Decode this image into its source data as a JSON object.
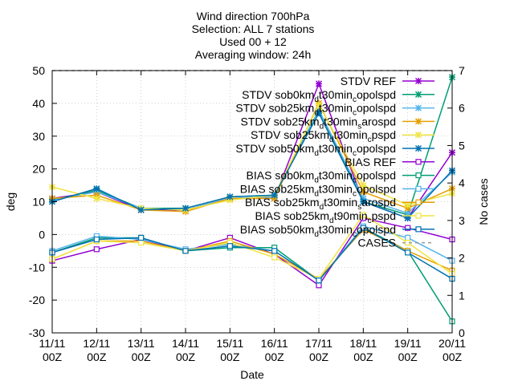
{
  "chart_data": {
    "type": "line",
    "title": [
      "Wind direction 700hPa",
      "Selection: ALL      7 stations",
      "Used 00 + 12",
      "Averaging window: 24h"
    ],
    "xlabel": "Date",
    "ylabel": "deg",
    "y2label": "No cases",
    "categories": [
      [
        "11/11",
        "00Z"
      ],
      [
        "12/11",
        "00Z"
      ],
      [
        "13/11",
        "00Z"
      ],
      [
        "14/11",
        "00Z"
      ],
      [
        "15/11",
        "00Z"
      ],
      [
        "16/11",
        "00Z"
      ],
      [
        "17/11",
        "00Z"
      ],
      [
        "18/11",
        "00Z"
      ],
      [
        "19/11",
        "00Z"
      ],
      [
        "20/11",
        "00Z"
      ]
    ],
    "ylim": [
      -30,
      50
    ],
    "yticks": [
      -30,
      -20,
      -10,
      0,
      10,
      20,
      30,
      40,
      50
    ],
    "y2lim": [
      0,
      7
    ],
    "y2ticks": [
      0,
      1,
      2,
      3,
      4,
      5,
      6,
      7
    ],
    "grid": true,
    "legend_position": "top-right",
    "series": [
      {
        "name": "STDV REF",
        "label_parts": [
          [
            "STDV REF",
            ""
          ]
        ],
        "color": "#9400d3",
        "marker": "x",
        "values": [
          11,
          13,
          7.5,
          7.5,
          11,
          11,
          46,
          10,
          5,
          25
        ]
      },
      {
        "name": "STDV sob0km_d t30min_c opolspd",
        "label_parts": [
          [
            "STDV sob0km",
            ""
          ],
          [
            "d",
            "sub"
          ],
          [
            "t30min",
            ""
          ],
          [
            "c",
            "sub"
          ],
          [
            "opolspd",
            ""
          ]
        ],
        "color": "#009e73",
        "marker": "x",
        "values": [
          10.5,
          13.5,
          8,
          8,
          11.5,
          12,
          38,
          10,
          6,
          48
        ]
      },
      {
        "name": "STDV sob25km_d t30min_c opolspd",
        "label_parts": [
          [
            "STDV sob25km",
            ""
          ],
          [
            "d",
            "sub"
          ],
          [
            "t30min",
            ""
          ],
          [
            "c",
            "sub"
          ],
          [
            "opolspd",
            ""
          ]
        ],
        "color": "#56b4e9",
        "marker": "x",
        "values": [
          10.5,
          13,
          8,
          7.5,
          11,
          11.5,
          38,
          11,
          6.5,
          19
        ]
      },
      {
        "name": "STDV sob25km_d t30min_s arospd",
        "label_parts": [
          [
            "STDV sob25km",
            ""
          ],
          [
            "d",
            "sub"
          ],
          [
            "t30min",
            ""
          ],
          [
            "s",
            "sub"
          ],
          [
            "arospd",
            ""
          ]
        ],
        "color": "#e69f00",
        "marker": "x",
        "values": [
          11,
          12,
          7.5,
          7,
          11,
          11,
          40,
          13,
          8,
          14
        ]
      },
      {
        "name": "STDV sob25km_d t30min_c pspd",
        "label_parts": [
          [
            "STDV sob25km",
            ""
          ],
          [
            "d",
            "sub"
          ],
          [
            "t30min",
            ""
          ],
          [
            "c",
            "sub"
          ],
          [
            "pspd",
            ""
          ]
        ],
        "color": "#f0e442",
        "marker": "x",
        "values": [
          14.5,
          11,
          8,
          7.5,
          10.5,
          12,
          39.5,
          15,
          9,
          12.5
        ]
      },
      {
        "name": "STDV sob50km_d t30min_c opolspd",
        "label_parts": [
          [
            "STDV sob50km",
            ""
          ],
          [
            "d",
            "sub"
          ],
          [
            "t30min",
            ""
          ],
          [
            "c",
            "sub"
          ],
          [
            "opolspd",
            ""
          ]
        ],
        "color": "#0072b2",
        "marker": "x",
        "values": [
          10,
          14,
          7.5,
          8,
          11.5,
          12,
          37,
          10,
          5,
          19.5
        ]
      },
      {
        "name": "BIAS REF",
        "label_parts": [
          [
            "BIAS REF",
            ""
          ]
        ],
        "color": "#9400d3",
        "marker": "square",
        "values": [
          -8,
          -4.5,
          -1.5,
          -5,
          -1,
          -6,
          -15.5,
          5,
          2,
          -1.5
        ]
      },
      {
        "name": "BIAS sob0km_d t30min_c opolspd",
        "label_parts": [
          [
            "BIAS sob0km",
            ""
          ],
          [
            "d",
            "sub"
          ],
          [
            "t30min",
            ""
          ],
          [
            "c",
            "sub"
          ],
          [
            "opolspd",
            ""
          ]
        ],
        "color": "#009e73",
        "marker": "square",
        "values": [
          -5.5,
          -1,
          -1,
          -5,
          -4,
          -4,
          -14,
          2,
          -5,
          -26.5
        ]
      },
      {
        "name": "BIAS sob25km_d t30min_c opolspd",
        "label_parts": [
          [
            "BIAS sob25km",
            ""
          ],
          [
            "d",
            "sub"
          ],
          [
            "t30min",
            ""
          ],
          [
            "c",
            "sub"
          ],
          [
            "opolspd",
            ""
          ]
        ],
        "color": "#56b4e9",
        "marker": "square",
        "values": [
          -5,
          -0.5,
          -1.5,
          -4.5,
          -3,
          -5,
          -14,
          2.5,
          -1,
          -8
        ]
      },
      {
        "name": "BIAS sob25km_d t30min_s arospd",
        "label_parts": [
          [
            "BIAS sob25km",
            ""
          ],
          [
            "d",
            "sub"
          ],
          [
            "t30min",
            ""
          ],
          [
            "s",
            "sub"
          ],
          [
            "arospd",
            ""
          ]
        ],
        "color": "#e69f00",
        "marker": "square",
        "values": [
          -7.5,
          -2,
          -2,
          -5,
          -2,
          -6,
          -13.5,
          1.5,
          -5,
          -11
        ]
      },
      {
        "name": "BIAS sob25km_d t90min_c pspd",
        "label_parts": [
          [
            "BIAS sob25km",
            ""
          ],
          [
            "d",
            "sub"
          ],
          [
            "t90min",
            ""
          ],
          [
            "c",
            "sub"
          ],
          [
            "pspd",
            ""
          ]
        ],
        "color": "#f0e442",
        "marker": "square",
        "values": [
          -7.5,
          -2,
          -2.5,
          -5,
          -2.5,
          -7,
          -13.5,
          6,
          -2.5,
          -12
        ]
      },
      {
        "name": "BIAS sob50km_d t30min_c opolspd",
        "label_parts": [
          [
            "BIAS sob50km",
            ""
          ],
          [
            "d",
            "sub"
          ],
          [
            "t30min",
            ""
          ],
          [
            "c",
            "sub"
          ],
          [
            "opolspd",
            ""
          ]
        ],
        "color": "#0072b2",
        "marker": "square",
        "values": [
          -5.5,
          -1.5,
          -1,
          -5,
          -3.5,
          -5,
          -14,
          2,
          -5.5,
          -13.5
        ]
      },
      {
        "name": "CASES",
        "label_parts": [
          [
            "CASES",
            ""
          ]
        ],
        "color": "#999999",
        "marker": "none",
        "dashed": true,
        "axis": "y2",
        "values": [
          7,
          7,
          7,
          7,
          7,
          7,
          7,
          7,
          7,
          7
        ]
      }
    ]
  }
}
